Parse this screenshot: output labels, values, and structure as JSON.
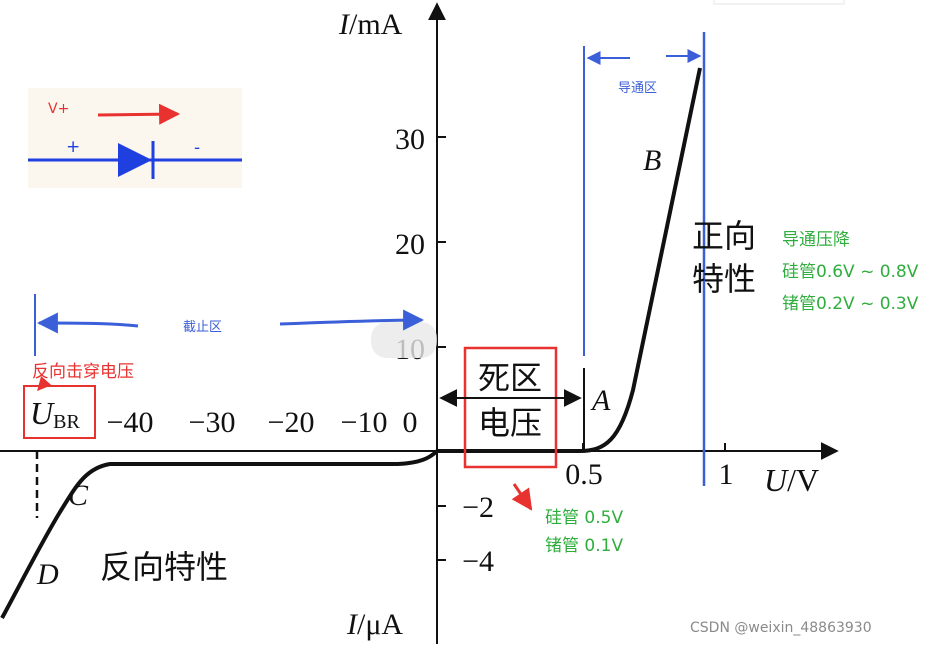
{
  "axes": {
    "y_label_top_italic": "I",
    "y_label_top_unit": "/mA",
    "y_label_bottom_italic": "I",
    "y_label_bottom_unit": "/μA",
    "x_label_italic": "U",
    "x_label_unit": "/V",
    "y_ticks_pos": [
      "30",
      "20",
      "10"
    ],
    "y_ticks_neg": [
      "−2",
      "−4"
    ],
    "x_ticks_pos": [
      "0.5",
      "1"
    ],
    "x_ticks_neg": [
      "−40",
      "−30",
      "−20",
      "−10",
      "0"
    ],
    "ubr_main": "U",
    "ubr_sub": "BR"
  },
  "points": {
    "A": "A",
    "B": "B",
    "C": "C",
    "D": "D"
  },
  "circuit": {
    "v_label": "V+",
    "plus": "+",
    "minus": "-"
  },
  "regions": {
    "conduction": "导通区",
    "cutoff": "截止区",
    "dead_zone_line1": "死区",
    "dead_zone_line2": "电压",
    "forward_char_line1": "正向",
    "forward_char_line2": "特性",
    "reverse_char": "反向特性"
  },
  "notes": {
    "breakdown": "反向击穿电压",
    "forward_drop_title": "导通压降",
    "forward_drop_si": "硅管0.6V ~ 0.8V",
    "forward_drop_ge": "锗管0.2V ~ 0.3V",
    "dead_si": "硅管 0.5V",
    "dead_ge": "锗管 0.1V"
  },
  "watermark": "CSDN @weixin_48863930",
  "colors": {
    "curve": "#111111",
    "axis": "#111111",
    "blue_annotation": "#3a5fd8",
    "red_annotation": "#e8322f",
    "green_text": "#2fae3d",
    "diode_blue": "#1f3fe0"
  }
}
